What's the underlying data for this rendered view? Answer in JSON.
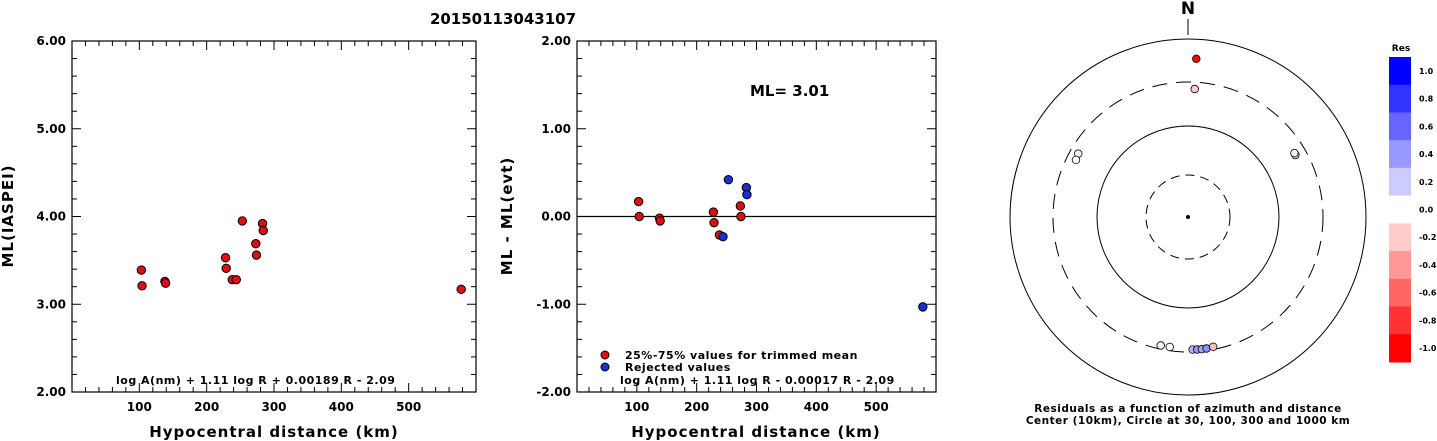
{
  "title": "20150113043107",
  "chart_data": [
    {
      "type": "scatter",
      "xlabel": "Hypocentral distance (km)",
      "ylabel": "ML(IASPEI)",
      "xlim": [
        0,
        600
      ],
      "ylim": [
        2.0,
        6.0
      ],
      "x_ticks": [
        "100",
        "200",
        "300",
        "400",
        "500"
      ],
      "y_ticks": [
        "2.00",
        "3.00",
        "4.00",
        "5.00",
        "6.00"
      ],
      "formula": "log A(nm) + 1.11 log R + 0.00189 R - 2.09",
      "series": [
        {
          "color": "#dd1111",
          "points": [
            [
              103,
              3.39
            ],
            [
              104,
              3.21
            ],
            [
              138,
              3.26
            ],
            [
              139,
              3.24
            ],
            [
              228,
              3.53
            ],
            [
              229,
              3.41
            ],
            [
              238,
              3.28
            ],
            [
              244,
              3.28
            ],
            [
              253,
              3.95
            ],
            [
              273,
              3.69
            ],
            [
              274,
              3.56
            ],
            [
              283,
              3.92
            ],
            [
              284,
              3.84
            ],
            [
              578,
              3.17
            ]
          ]
        }
      ]
    },
    {
      "type": "scatter",
      "xlabel": "Hypocentral distance (km)",
      "ylabel": "ML - ML(evt)",
      "xlim": [
        0,
        600
      ],
      "ylim": [
        -2.0,
        2.0
      ],
      "x_ticks": [
        "100",
        "200",
        "300",
        "400",
        "500"
      ],
      "y_ticks": [
        "-2.00",
        "-1.00",
        "0.00",
        "1.00",
        "2.00"
      ],
      "annotation": "ML= 3.01",
      "formula": "log A(nm) + 1.11 log R - 0.00017 R - 2.09",
      "zero_line": true,
      "series": [
        {
          "name": "25%-75% values for trimmed mean",
          "color": "#dd1111",
          "points": [
            [
              103,
              0.17
            ],
            [
              104,
              0.0
            ],
            [
              138,
              -0.02
            ],
            [
              139,
              -0.05
            ],
            [
              228,
              0.05
            ],
            [
              229,
              -0.07
            ],
            [
              238,
              -0.21
            ],
            [
              273,
              0.12
            ],
            [
              274,
              0.0
            ]
          ]
        },
        {
          "name": "Rejected values",
          "color": "#1a2fd6",
          "points": [
            [
              244,
              -0.23
            ],
            [
              253,
              0.42
            ],
            [
              283,
              0.33
            ],
            [
              284,
              0.25
            ],
            [
              578,
              -1.03
            ]
          ]
        }
      ]
    },
    {
      "type": "polar-scatter",
      "north_label": "N",
      "caption_line1": "Residuals as a function of azimuth and distance",
      "caption_line2": "Center (10km), Circle at 30, 100, 300 and 1000 km",
      "rings_km": [
        30,
        100,
        300,
        1000
      ],
      "points": [
        {
          "azimuth": 3,
          "distance_km": 578,
          "residual": -1.03
        },
        {
          "azimuth": 3,
          "distance_km": 253,
          "residual": -0.2
        },
        {
          "azimuth": 300,
          "distance_km": 244,
          "residual": 0.05
        },
        {
          "azimuth": 297,
          "distance_km": 238,
          "residual": 0.0
        },
        {
          "azimuth": 60,
          "distance_km": 228,
          "residual": 0.2
        },
        {
          "azimuth": 59,
          "distance_km": 229,
          "residual": 0.05
        },
        {
          "azimuth": 192,
          "distance_km": 274,
          "residual": 0.05
        },
        {
          "azimuth": 188,
          "distance_km": 273,
          "residual": 0.02
        },
        {
          "azimuth": 178,
          "distance_km": 283,
          "residual": 0.3
        },
        {
          "azimuth": 176,
          "distance_km": 284,
          "residual": 0.4
        },
        {
          "azimuth": 174,
          "distance_km": 285,
          "residual": 0.35
        },
        {
          "azimuth": 172,
          "distance_km": 284,
          "residual": 0.45
        },
        {
          "azimuth": 169,
          "distance_km": 280,
          "residual": -0.25
        }
      ]
    }
  ],
  "colorbar": {
    "title": "Res",
    "labels": [
      "1.0",
      "0.8",
      "0.6",
      "0.4",
      "0.2",
      "0.0",
      "-0.2",
      "-0.4",
      "-0.6",
      "-0.8",
      "-1.0"
    ]
  },
  "colors": {
    "accepted": "#dd1111",
    "rejected": "#1a2fd6"
  }
}
